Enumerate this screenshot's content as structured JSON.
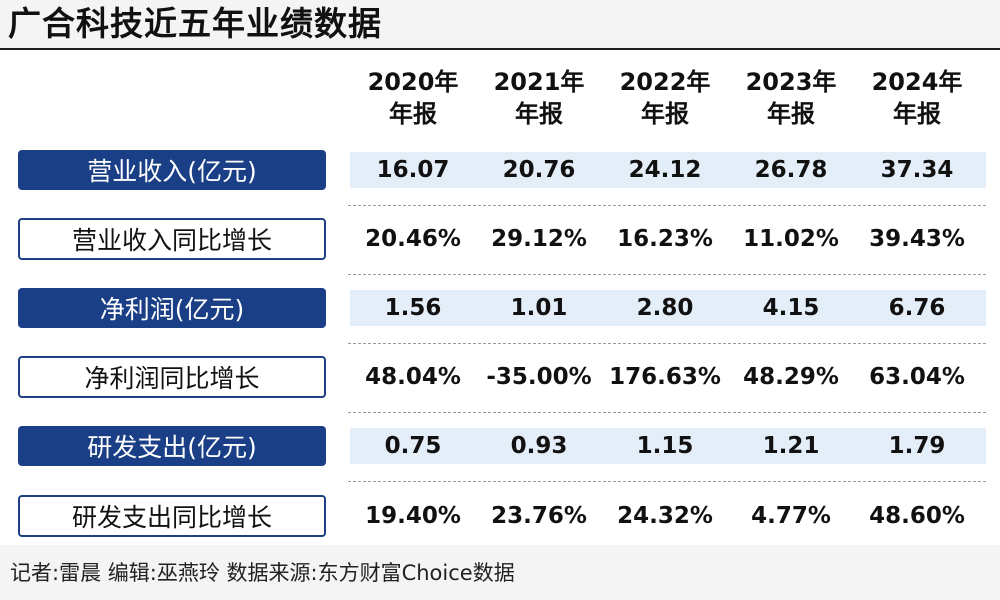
{
  "title": "广合科技近五年业绩数据",
  "footer": "记者:雷晨  编辑:巫燕玲  数据来源:东方财富Choice数据",
  "colors": {
    "dark_label_bg": "#1b3f86",
    "label_border": "#1f3f85",
    "highlight_stripe": "#e3eef9"
  },
  "chart_data": {
    "type": "table",
    "title": "广合科技近五年业绩数据",
    "columns": [
      [
        "2020年",
        "年报"
      ],
      [
        "2021年",
        "年报"
      ],
      [
        "2022年",
        "年报"
      ],
      [
        "2023年",
        "年报"
      ],
      [
        "2024年",
        "年报"
      ]
    ],
    "rows": [
      {
        "label": "营业收入(亿元)",
        "style": "dark",
        "values": [
          "16.07",
          "20.76",
          "24.12",
          "26.78",
          "37.34"
        ]
      },
      {
        "label": "营业收入同比增长",
        "style": "light",
        "values": [
          "20.46%",
          "29.12%",
          "16.23%",
          "11.02%",
          "39.43%"
        ]
      },
      {
        "label": "净利润(亿元)",
        "style": "dark",
        "values": [
          "1.56",
          "1.01",
          "2.80",
          "4.15",
          "6.76"
        ]
      },
      {
        "label": "净利润同比增长",
        "style": "light",
        "values": [
          "48.04%",
          "-35.00%",
          "176.63%",
          "48.29%",
          "63.04%"
        ]
      },
      {
        "label": "研发支出(亿元)",
        "style": "dark",
        "values": [
          "0.75",
          "0.93",
          "1.15",
          "1.21",
          "1.79"
        ]
      },
      {
        "label": "研发支出同比增长",
        "style": "light",
        "values": [
          "19.40%",
          "23.76%",
          "24.32%",
          "4.77%",
          "48.60%"
        ]
      }
    ]
  }
}
